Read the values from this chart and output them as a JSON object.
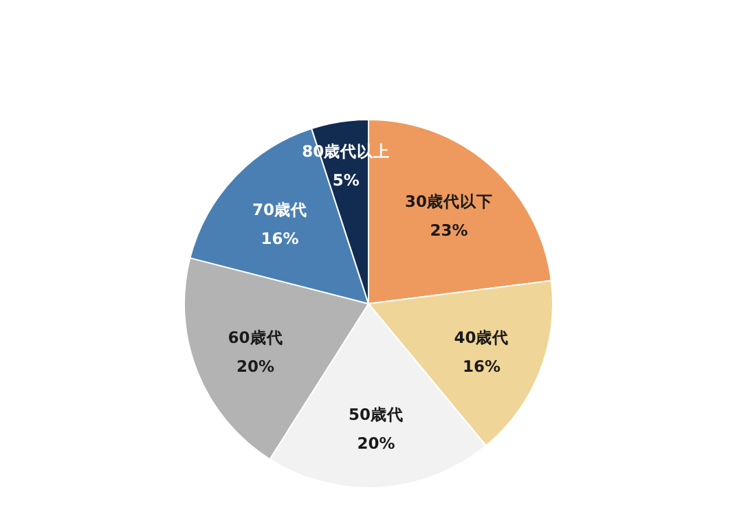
{
  "chart_data": {
    "type": "pie",
    "categories": [
      "30歳代以下",
      "40歳代",
      "50歳代",
      "60歳代",
      "70歳代",
      "80歳代以上"
    ],
    "values": [
      23,
      16,
      20,
      20,
      16,
      5
    ],
    "colors": [
      "#ee9a5e",
      "#efd597",
      "#f2f2f2",
      "#b3b3b3",
      "#4a7fb3",
      "#122b50"
    ],
    "value_labels": [
      "23%",
      "16%",
      "20%",
      "20%",
      "16%",
      "5%"
    ]
  }
}
